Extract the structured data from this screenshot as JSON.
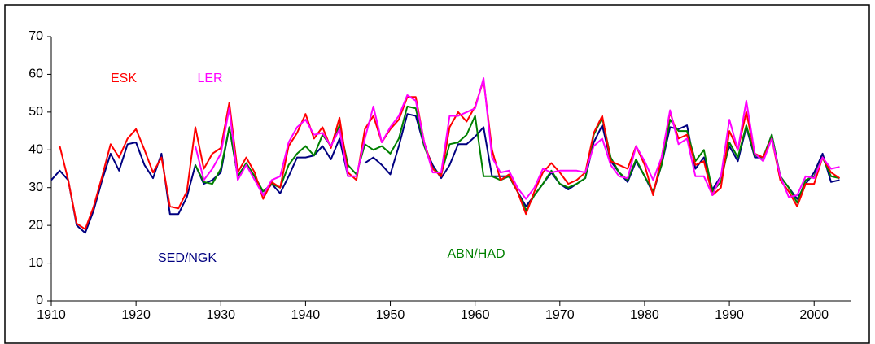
{
  "chart_data": {
    "type": "line",
    "x": [
      1910,
      1911,
      1912,
      1913,
      1914,
      1915,
      1916,
      1917,
      1918,
      1919,
      1920,
      1921,
      1922,
      1923,
      1924,
      1925,
      1926,
      1927,
      1928,
      1929,
      1930,
      1931,
      1932,
      1933,
      1934,
      1935,
      1936,
      1937,
      1938,
      1939,
      1940,
      1941,
      1942,
      1943,
      1944,
      1945,
      1946,
      1947,
      1948,
      1949,
      1950,
      1951,
      1952,
      1953,
      1954,
      1955,
      1956,
      1957,
      1958,
      1959,
      1960,
      1961,
      1962,
      1963,
      1964,
      1965,
      1966,
      1967,
      1968,
      1969,
      1970,
      1971,
      1972,
      1973,
      1974,
      1975,
      1976,
      1977,
      1978,
      1979,
      1980,
      1981,
      1982,
      1983,
      1984,
      1985,
      1986,
      1987,
      1988,
      1989,
      1990,
      1991,
      1992,
      1993,
      1994,
      1995,
      1996,
      1997,
      1998,
      1999,
      2000,
      2001,
      2002,
      2003
    ],
    "series": [
      {
        "name": "SED/NGK",
        "color": "#000080",
        "values": [
          32,
          34.5,
          32,
          20,
          18,
          24,
          32,
          39,
          34.5,
          41.5,
          42,
          36,
          32.5,
          39,
          23,
          23,
          27.5,
          36,
          31,
          32,
          34,
          46,
          33,
          36,
          33,
          28,
          31,
          28.5,
          33,
          38,
          38,
          38.5,
          41,
          37.5,
          43,
          33,
          null,
          36.5,
          38,
          36,
          33.5,
          41,
          49.5,
          49,
          41,
          36,
          32.5,
          36,
          41.5,
          41.5,
          43.5,
          46,
          33,
          33,
          33,
          29,
          25,
          28,
          31,
          34,
          31,
          29.5,
          31,
          32.5,
          42,
          46.5,
          37,
          34,
          31.5,
          37,
          33,
          28.5,
          36,
          46,
          45.5,
          46.5,
          35,
          38,
          29.5,
          33,
          41,
          37,
          46,
          38,
          38,
          44,
          33,
          30,
          27,
          31,
          34,
          39,
          31.5,
          32
        ]
      },
      {
        "name": "ABN/HAD",
        "color": "#008000",
        "values": [
          null,
          null,
          null,
          null,
          null,
          null,
          null,
          null,
          null,
          null,
          null,
          null,
          null,
          null,
          null,
          null,
          null,
          36,
          31.5,
          31,
          35,
          46,
          33,
          36.5,
          33,
          29,
          31,
          30,
          36,
          39,
          41,
          38.5,
          44,
          41,
          46.5,
          36,
          33.5,
          41.5,
          40,
          41,
          39,
          43,
          51.5,
          51,
          41,
          35,
          33.5,
          41.5,
          42,
          44,
          49,
          33,
          33,
          32,
          33,
          29,
          24,
          28,
          31,
          34.5,
          31,
          30,
          31,
          32.5,
          44,
          48.5,
          38,
          34,
          32,
          37.5,
          33,
          29,
          36,
          48,
          45,
          45,
          37,
          40,
          29,
          31.5,
          42,
          38,
          46.5,
          38.5,
          38,
          44,
          33,
          30,
          26,
          32,
          33,
          38,
          33,
          32.5
        ]
      },
      {
        "name": "ESK",
        "color": "#ff0000",
        "values": [
          null,
          41,
          32,
          20.5,
          19,
          25,
          33,
          41.5,
          38,
          43,
          45.5,
          40,
          34,
          38,
          25,
          24.5,
          29,
          46,
          35,
          39,
          40.5,
          52.5,
          34,
          38,
          34,
          27,
          31.5,
          30,
          41,
          44.5,
          49.5,
          43,
          46,
          40.5,
          48.5,
          34,
          32,
          45.5,
          49,
          42,
          45.5,
          48,
          54,
          54,
          42,
          35,
          33,
          46,
          50,
          47.5,
          51.5,
          58.5,
          40,
          32,
          33.5,
          29,
          23,
          29,
          34,
          36.5,
          34,
          31,
          32,
          34,
          44.5,
          49,
          37,
          36,
          35,
          41,
          36,
          28,
          38,
          50,
          43,
          44,
          36,
          37,
          28,
          30,
          45,
          40,
          50,
          39,
          38,
          43,
          32,
          29,
          25,
          31,
          31,
          38,
          34,
          32.5
        ]
      },
      {
        "name": "LER",
        "color": "#ff00ff",
        "values": [
          null,
          null,
          null,
          null,
          null,
          null,
          null,
          null,
          null,
          null,
          null,
          null,
          null,
          null,
          null,
          null,
          null,
          41,
          32,
          35,
          39,
          51,
          32,
          36,
          32,
          28,
          32,
          33,
          42,
          46,
          48,
          44,
          44.5,
          41,
          45.5,
          33,
          33,
          43,
          51.5,
          42,
          46,
          49,
          54.5,
          53,
          42,
          34,
          34,
          49,
          49,
          50,
          51,
          59,
          38,
          34,
          34.5,
          30,
          27,
          30,
          35,
          34,
          34.5,
          34.5,
          34.5,
          34,
          41,
          43,
          36,
          33,
          32.5,
          41,
          37,
          32,
          38,
          50.5,
          41.5,
          43,
          33,
          33,
          28,
          33,
          48,
          40,
          53,
          39,
          37,
          43,
          33,
          27.5,
          28,
          33,
          32.5,
          38,
          35,
          35.5
        ]
      }
    ],
    "xlim": [
      1910,
      2004.3
    ],
    "xticks": [
      1910,
      1920,
      1930,
      1940,
      1950,
      1960,
      1970,
      1980,
      1990,
      2000
    ],
    "ylim": [
      0,
      70
    ],
    "yticks": [
      0,
      10,
      20,
      30,
      40,
      50,
      60,
      70
    ],
    "grid": false
  }
}
